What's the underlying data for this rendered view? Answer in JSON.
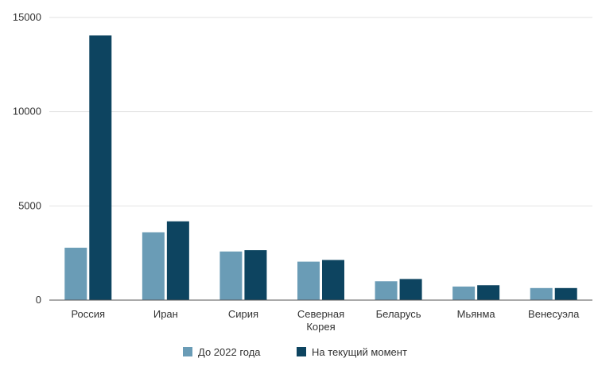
{
  "chart_data": {
    "type": "bar",
    "title": "",
    "xlabel": "",
    "ylabel": "",
    "ylim": [
      0,
      15000
    ],
    "yticks": [
      "0",
      "5000",
      "10000",
      "15000"
    ],
    "grid": true,
    "legend_position": "bottom",
    "categories": [
      [
        "Россия"
      ],
      [
        "Иран"
      ],
      [
        "Сирия"
      ],
      [
        "Северная",
        "Корея"
      ],
      [
        "Беларусь"
      ],
      [
        "Мьянма"
      ],
      [
        "Венесуэла"
      ]
    ],
    "series": [
      {
        "name": "До 2022 года",
        "color": "#6a9cb6",
        "values": [
          2780,
          3600,
          2580,
          2040,
          1000,
          720,
          640
        ]
      },
      {
        "name": "На текущий момент",
        "color": "#0d4460",
        "values": [
          14050,
          4180,
          2650,
          2130,
          1120,
          790,
          640
        ]
      }
    ]
  }
}
